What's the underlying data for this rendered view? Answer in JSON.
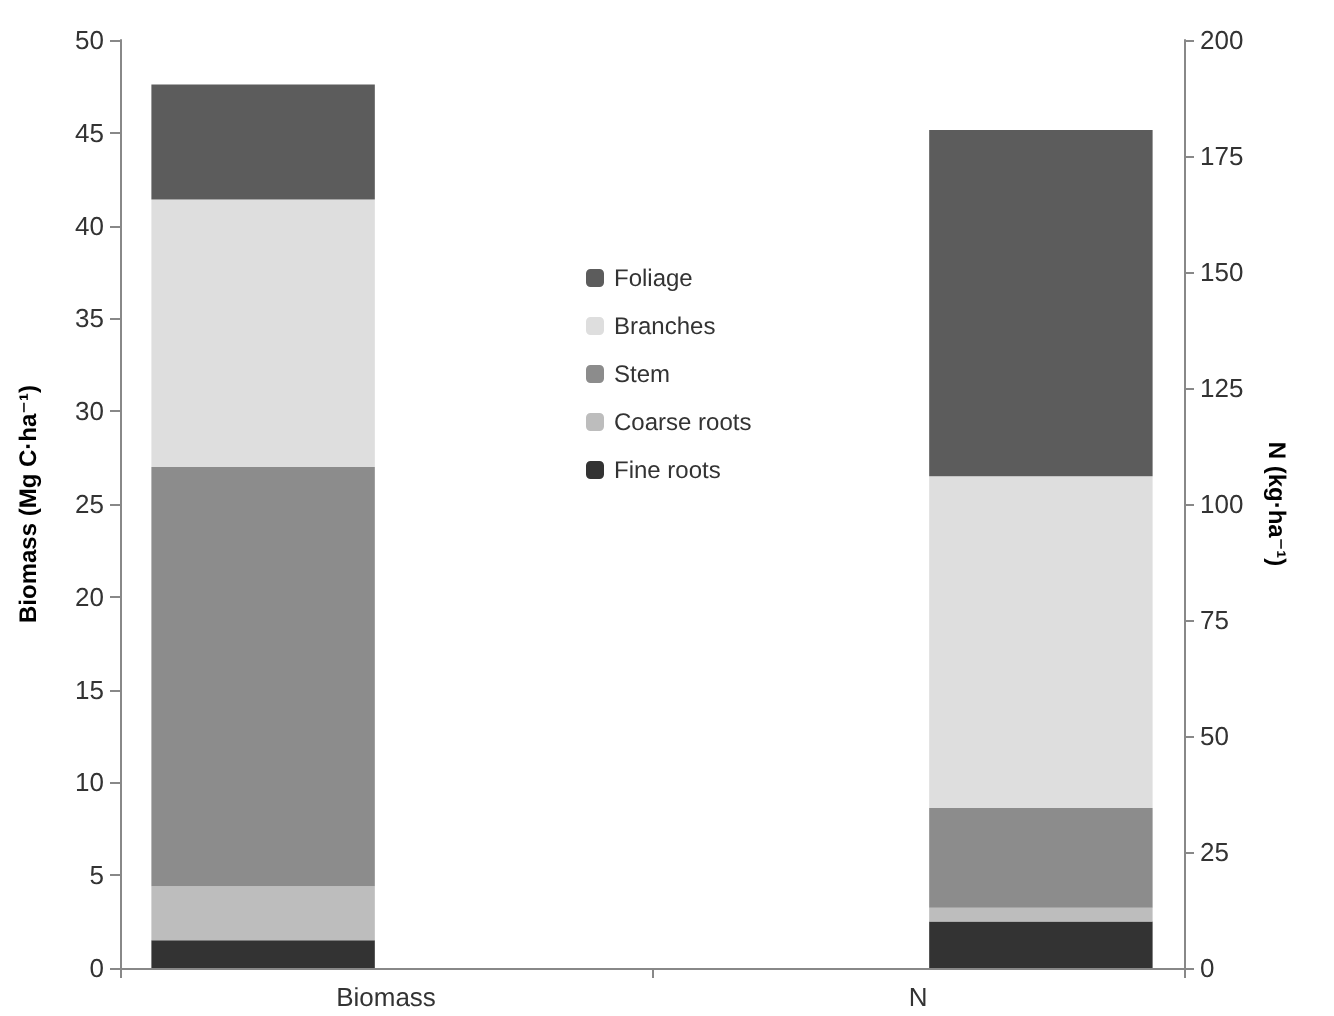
{
  "chart_data": {
    "type": "bar",
    "stacked": true,
    "categories": [
      "Biomass",
      "N"
    ],
    "ylabel": "Biomass (Mg C·ha⁻¹)",
    "y2label": "N (kg·ha⁻¹)",
    "ylim": [
      0,
      50
    ],
    "yticks": [
      0,
      5,
      10,
      15,
      20,
      25,
      30,
      35,
      40,
      45,
      50
    ],
    "y2lim": [
      0,
      200
    ],
    "y2ticks": [
      0,
      25,
      50,
      75,
      100,
      125,
      150,
      175,
      200
    ],
    "grid": false,
    "legend": "top",
    "series": [
      {
        "name": "Fine roots",
        "color": "#333333",
        "values": [
          1.5,
          null
        ]
      },
      {
        "name": "Coarse roots",
        "color": "#bdbdbd",
        "values": [
          2.9,
          null
        ]
      },
      {
        "name": "Stem",
        "color": "#8c8c8c",
        "values": [
          22.6,
          null
        ]
      },
      {
        "name": "Branches",
        "color": "#dedede",
        "values": [
          14.4,
          null
        ]
      },
      {
        "name": "Foliage",
        "color": "#5c5c5c",
        "values": [
          6.2,
          null
        ]
      },
      {
        "color": "#333333",
        "values": [
          null,
          10
        ],
        "axis": "y2"
      },
      {
        "color": "#bdbdbd",
        "values": [
          null,
          3
        ],
        "axis": "y2"
      },
      {
        "color": "#8c8c8c",
        "values": [
          null,
          21.5
        ],
        "axis": "y2"
      },
      {
        "color": "#dedede",
        "values": [
          null,
          71.5
        ],
        "axis": "y2"
      },
      {
        "color": "#5c5c5c",
        "values": [
          null,
          74.6
        ],
        "axis": "y2"
      }
    ]
  }
}
